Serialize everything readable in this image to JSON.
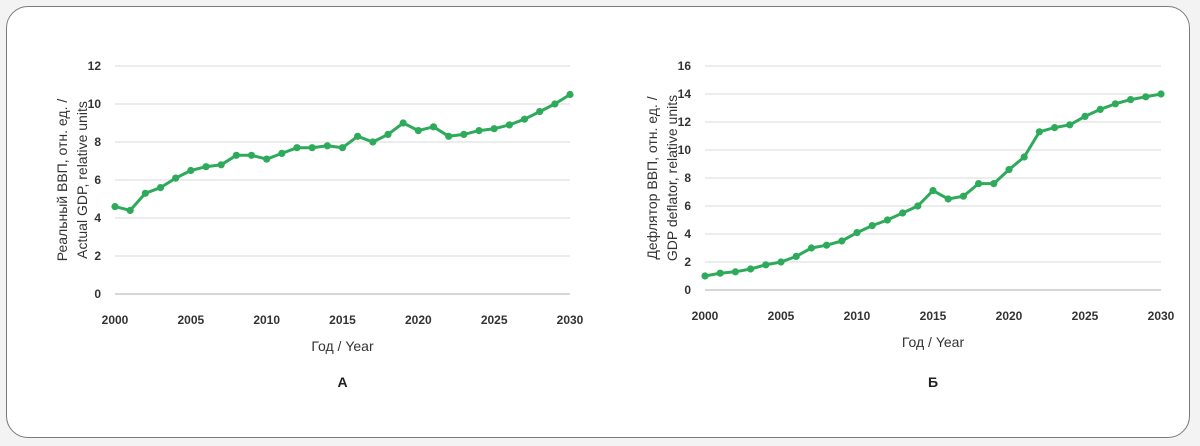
{
  "colors": {
    "series": "#2EAA5B",
    "grid": "#d9d9d9",
    "axis": "#bfbfbf"
  },
  "chart_data": [
    {
      "type": "line",
      "panel": "А",
      "xlabel": "Год / Year",
      "ylabel_lines": [
        "Реальный ВВП, отн. ед. /",
        "Actual GDP, relative units"
      ],
      "xlim": [
        2000,
        2030
      ],
      "ylim": [
        0,
        12
      ],
      "xticks": [
        2000,
        2005,
        2010,
        2015,
        2020,
        2025,
        2030
      ],
      "yticks": [
        0,
        2,
        4,
        6,
        8,
        10,
        12
      ],
      "grid": "horizontal",
      "x": [
        2000,
        2001,
        2002,
        2003,
        2004,
        2005,
        2006,
        2007,
        2008,
        2009,
        2010,
        2011,
        2012,
        2013,
        2014,
        2015,
        2016,
        2017,
        2018,
        2019,
        2020,
        2021,
        2022,
        2023,
        2024,
        2025,
        2026,
        2027,
        2028,
        2029,
        2030
      ],
      "series": [
        {
          "values": [
            4.6,
            4.4,
            5.3,
            5.6,
            6.1,
            6.5,
            6.7,
            6.8,
            7.3,
            7.3,
            7.1,
            7.4,
            7.7,
            7.7,
            7.8,
            7.7,
            8.3,
            8.0,
            8.4,
            9.0,
            8.6,
            8.8,
            8.3,
            8.4,
            8.6,
            8.7,
            8.9,
            9.2,
            9.6,
            10.0,
            10.5
          ]
        }
      ]
    },
    {
      "type": "line",
      "panel": "Б",
      "xlabel": "Год / Year",
      "ylabel_lines": [
        "Дефлятор ВВП, отн. ед. /",
        "GDP deflator, relative units"
      ],
      "xlim": [
        2000,
        2030
      ],
      "ylim": [
        0,
        16
      ],
      "xticks": [
        2000,
        2005,
        2010,
        2015,
        2020,
        2025,
        2030
      ],
      "yticks": [
        0,
        2,
        4,
        6,
        8,
        10,
        12,
        14,
        16
      ],
      "grid": "horizontal",
      "x": [
        2000,
        2001,
        2002,
        2003,
        2004,
        2005,
        2006,
        2007,
        2008,
        2009,
        2010,
        2011,
        2012,
        2013,
        2014,
        2015,
        2016,
        2017,
        2018,
        2019,
        2020,
        2021,
        2022,
        2023,
        2024,
        2025,
        2026,
        2027,
        2028,
        2029,
        2030
      ],
      "series": [
        {
          "values": [
            1.0,
            1.2,
            1.3,
            1.5,
            1.8,
            2.0,
            2.4,
            3.0,
            3.2,
            3.5,
            4.1,
            4.6,
            5.0,
            5.5,
            6.0,
            7.1,
            6.5,
            6.7,
            7.6,
            7.6,
            8.6,
            9.5,
            11.3,
            11.6,
            11.8,
            12.4,
            12.9,
            13.3,
            13.6,
            13.8,
            14.0
          ]
        }
      ]
    }
  ]
}
